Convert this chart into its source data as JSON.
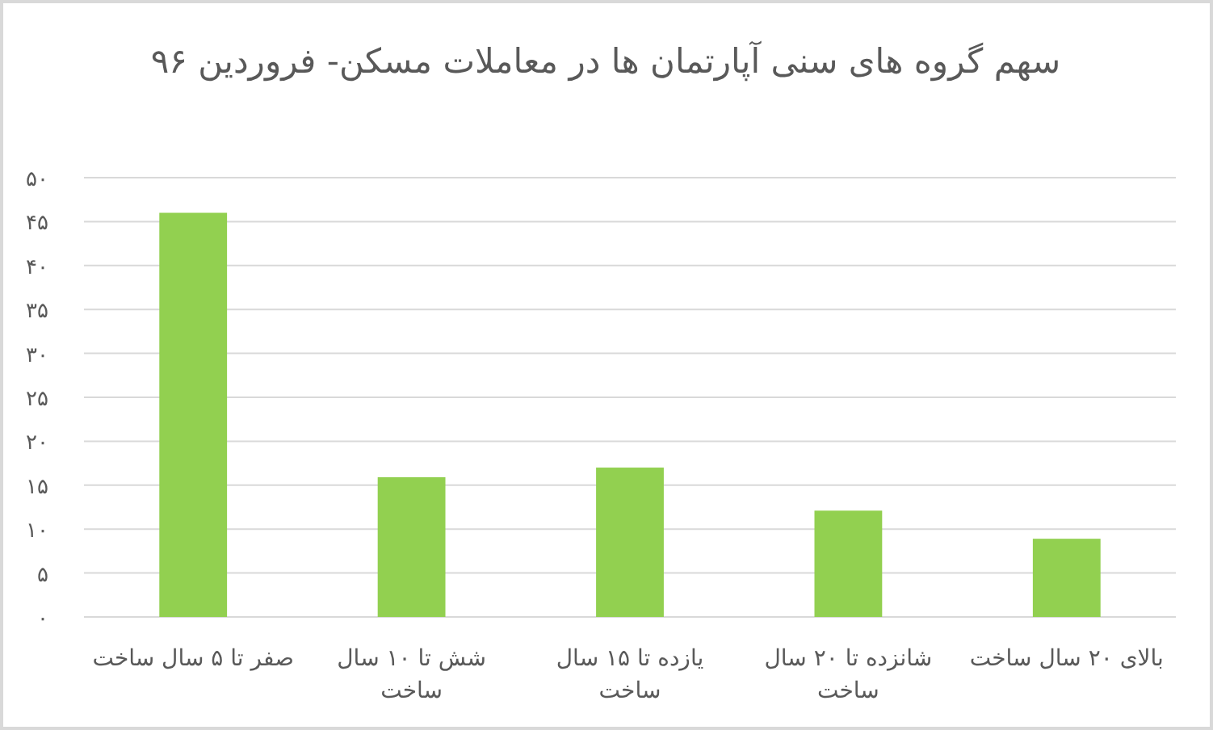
{
  "chart_data": {
    "type": "bar",
    "title": "سهم گروه های سنی آپارتمان ها در معاملات مسکن- فروردین ۹۶",
    "categories": [
      "صفر تا ۵ سال ساخت",
      "شش تا ۱۰ سال ساخت",
      "یازده تا ۱۵ سال ساخت",
      "شانزده تا ۲۰ سال ساخت",
      "بالای ۲۰ سال ساخت"
    ],
    "values": [
      46,
      15.9,
      17,
      12.1,
      8.9
    ],
    "color": "#92d050",
    "ylim": [
      0,
      50
    ],
    "yticks": [
      {
        "value": 0,
        "label": "۰"
      },
      {
        "value": 5,
        "label": "۵"
      },
      {
        "value": 10,
        "label": "۱۰"
      },
      {
        "value": 15,
        "label": "۱۵"
      },
      {
        "value": 20,
        "label": "۲۰"
      },
      {
        "value": 25,
        "label": "۲۵"
      },
      {
        "value": 30,
        "label": "۳۰"
      },
      {
        "value": 35,
        "label": "۳۵"
      },
      {
        "value": 40,
        "label": "۴۰"
      },
      {
        "value": 45,
        "label": "۴۵"
      },
      {
        "value": 50,
        "label": "۵۰"
      }
    ],
    "grid": "y"
  }
}
